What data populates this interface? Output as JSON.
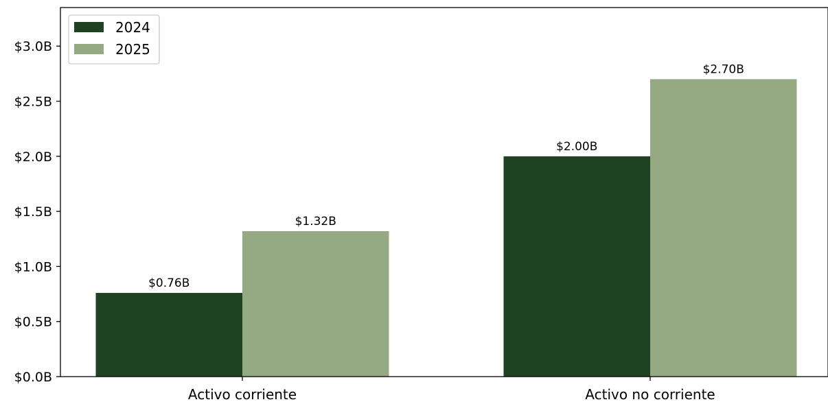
{
  "chart_data": {
    "type": "bar",
    "title": "",
    "xlabel": "",
    "ylabel": "",
    "categories": [
      "Activo corriente",
      "Activo no corriente"
    ],
    "series": [
      {
        "name": "2024",
        "color": "#1f4222",
        "values": [
          0.76,
          2.0
        ],
        "labels": [
          "$0.76B",
          "$2.00B"
        ]
      },
      {
        "name": "2025",
        "color": "#95a983",
        "values": [
          1.32,
          2.7
        ],
        "labels": [
          "$1.32B",
          "$2.70B"
        ]
      }
    ],
    "ylim": [
      0,
      3.35
    ],
    "yticks": [
      0,
      0.5,
      1.0,
      1.5,
      2.0,
      2.5,
      3.0
    ],
    "ytick_labels": [
      "$0.0B",
      "$0.5B",
      "$1.0B",
      "$1.5B",
      "$2.0B",
      "$2.5B",
      "$3.0B"
    ],
    "grid": false,
    "legend_position": "top-left"
  }
}
